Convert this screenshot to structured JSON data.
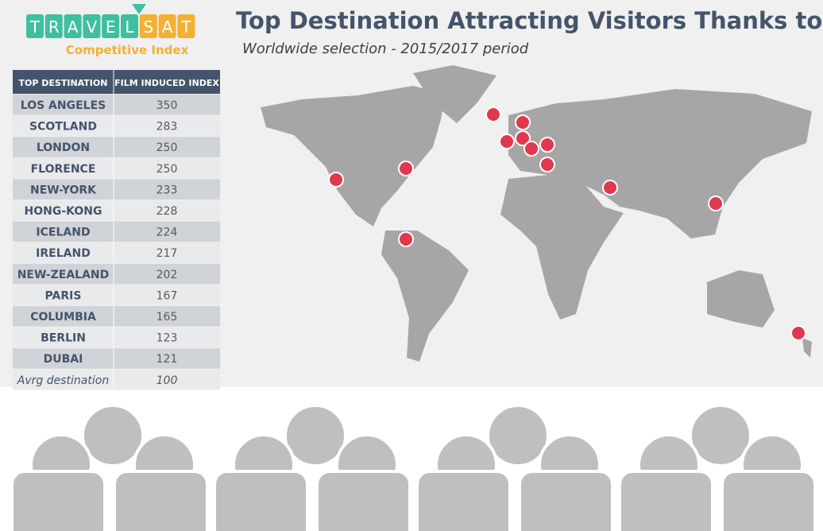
{
  "logo": {
    "letters": [
      "T",
      "R",
      "A",
      "V",
      "E",
      "L",
      "S",
      "A",
      "T"
    ],
    "caption": "Competitive Index"
  },
  "header": {
    "title": "Top Destination Attracting Visitors Thanks to Films",
    "subtitle": "Worldwide selection - 2015/2017 period"
  },
  "table": {
    "columns": [
      "TOP DESTINATION",
      "FILM INDUCED INDEX"
    ],
    "rows": [
      [
        "LOS ANGELES",
        350
      ],
      [
        "SCOTLAND",
        283
      ],
      [
        "LONDON",
        250
      ],
      [
        "FLORENCE",
        250
      ],
      [
        "NEW-YORK",
        233
      ],
      [
        "HONG-KONG",
        228
      ],
      [
        "ICELAND",
        224
      ],
      [
        "IRELAND",
        217
      ],
      [
        "NEW-ZEALAND",
        202
      ],
      [
        "PARIS",
        167
      ],
      [
        "COLUMBIA",
        165
      ],
      [
        "BERLIN",
        123
      ],
      [
        "DUBAI",
        121
      ]
    ],
    "footer": [
      "Avrg destination",
      100
    ]
  }
}
